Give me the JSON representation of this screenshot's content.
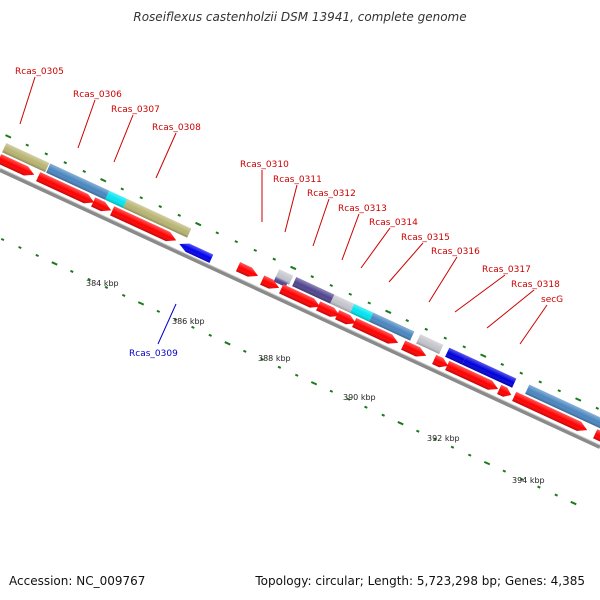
{
  "title": "Roseiflexus castenholzii DSM 13941, complete genome",
  "accession": "Accession: NC_009767",
  "topology": "Topology: circular; Length: 5,723,298 bp; Genes: 4,385",
  "colors": {
    "cds_forward": "#ff0000",
    "cds_reverse": "#0000ee",
    "label_forward": "#cc0000",
    "label_reverse": "#0000cc",
    "backbone": "#8a8a8a",
    "tick": "#1a7a1a",
    "cog_olive": "#b8b472",
    "cog_steel": "#4a86c0",
    "cog_cyan": "#00e5f0",
    "cog_purple": "#50458f",
    "cog_grey": "#c4c4cc",
    "cog_blue": "#0000dd"
  },
  "gene_labels": [
    {
      "name": "Rcas_0305",
      "strand": "forward"
    },
    {
      "name": "Rcas_0306",
      "strand": "forward"
    },
    {
      "name": "Rcas_0307",
      "strand": "forward"
    },
    {
      "name": "Rcas_0308",
      "strand": "forward"
    },
    {
      "name": "Rcas_0309",
      "strand": "reverse"
    },
    {
      "name": "Rcas_0310",
      "strand": "forward"
    },
    {
      "name": "Rcas_0311",
      "strand": "forward"
    },
    {
      "name": "Rcas_0312",
      "strand": "forward"
    },
    {
      "name": "Rcas_0313",
      "strand": "forward"
    },
    {
      "name": "Rcas_0314",
      "strand": "forward"
    },
    {
      "name": "Rcas_0315",
      "strand": "forward"
    },
    {
      "name": "Rcas_0316",
      "strand": "forward"
    },
    {
      "name": "Rcas_0317",
      "strand": "forward"
    },
    {
      "name": "Rcas_0318",
      "strand": "forward"
    },
    {
      "name": "secG",
      "strand": "forward"
    }
  ],
  "kbp_labels": [
    "384 kbp",
    "386 kbp",
    "388 kbp",
    "390 kbp",
    "392 kbp",
    "394 kbp"
  ]
}
